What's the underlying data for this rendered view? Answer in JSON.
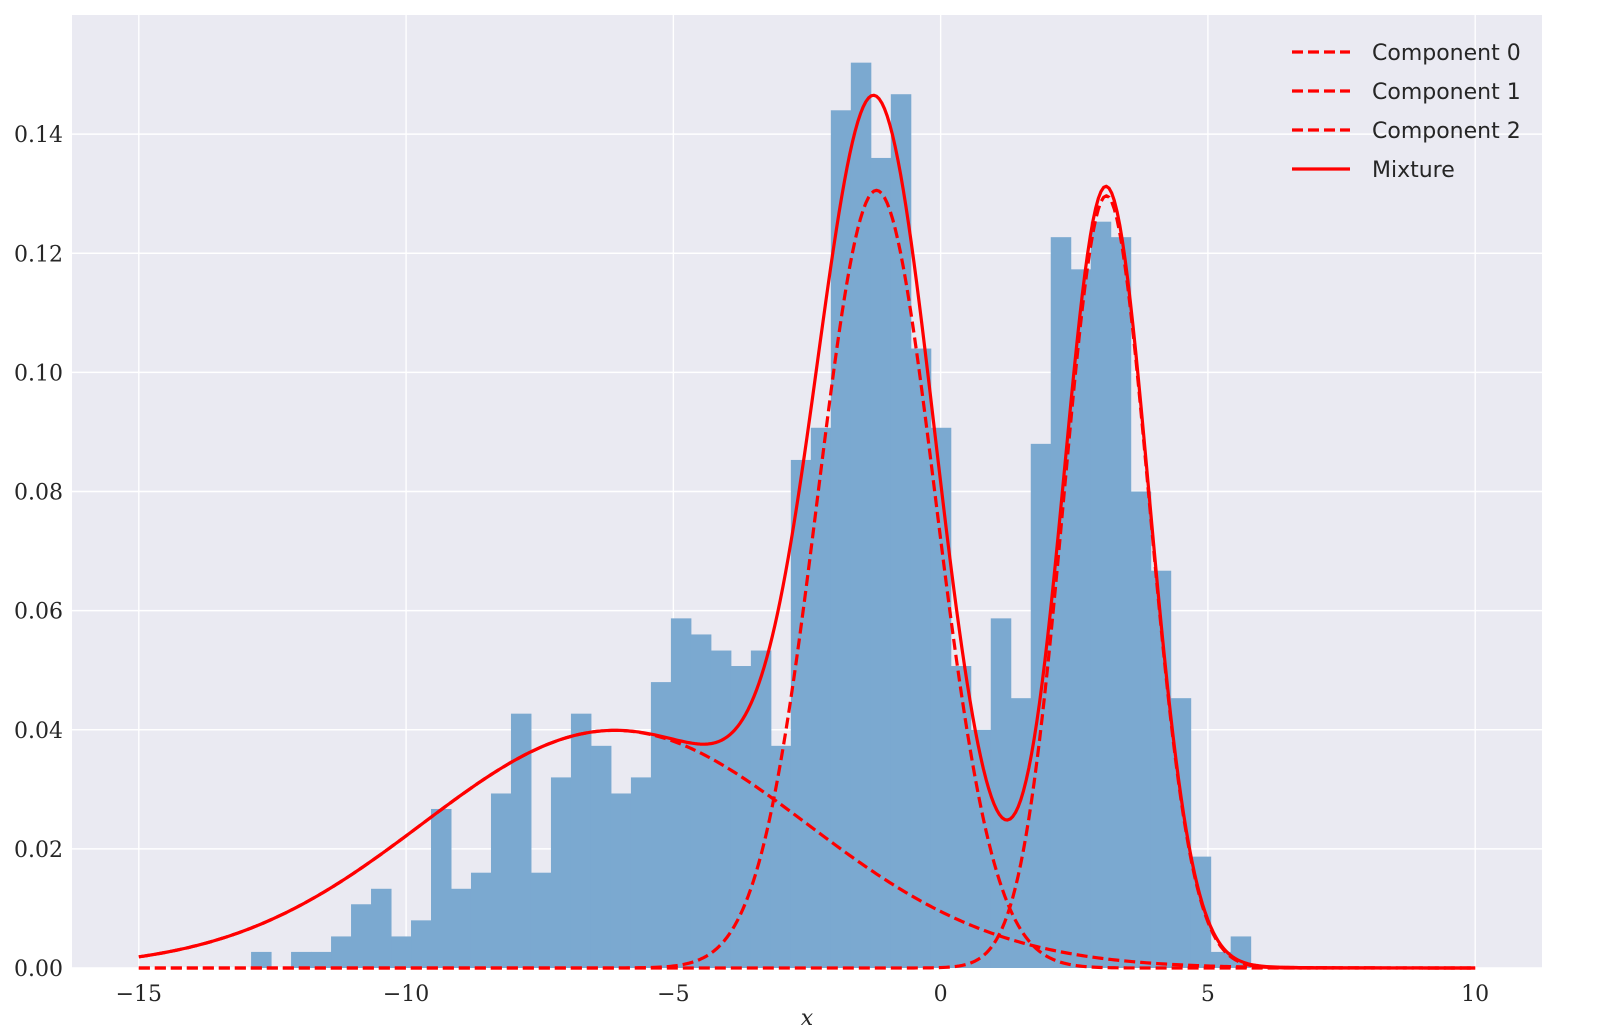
{
  "chart_data": {
    "type": "bar",
    "xlabel": "x",
    "ylabel": "",
    "xlim": [
      -16.25,
      11.25
    ],
    "ylim": [
      0,
      0.16
    ],
    "grid": true,
    "legend_position": "top-right",
    "x_ticks": [
      -15,
      -10,
      -5,
      0,
      5,
      10
    ],
    "x_tick_labels": [
      "−15",
      "−10",
      "−5",
      "0",
      "5",
      "10"
    ],
    "y_ticks": [
      0,
      0.02,
      0.04,
      0.06,
      0.08,
      0.1,
      0.12,
      0.14
    ],
    "y_tick_labels": [
      "0.00",
      "0.02",
      "0.04",
      "0.06",
      "0.08",
      "0.10",
      "0.12",
      "0.14"
    ],
    "histogram": {
      "color": "#7ba9d0",
      "bin_left": -12.9,
      "bin_width": 0.374,
      "values": [
        0.0027,
        0,
        0.0027,
        0.0027,
        0.0053,
        0.0107,
        0.0133,
        0.0053,
        0.008,
        0.0267,
        0.0133,
        0.016,
        0.0293,
        0.0427,
        0.016,
        0.032,
        0.0427,
        0.0373,
        0.0293,
        0.032,
        0.048,
        0.0587,
        0.056,
        0.0533,
        0.0507,
        0.0533,
        0.0373,
        0.0853,
        0.0907,
        0.144,
        0.152,
        0.136,
        0.1467,
        0.104,
        0.0907,
        0.0507,
        0.04,
        0.0587,
        0.0453,
        0.088,
        0.1227,
        0.1173,
        0.1253,
        0.1227,
        0.08,
        0.0667,
        0.0453,
        0.0187,
        0.0027,
        0.0053
      ]
    },
    "series": [
      {
        "name": "Component 0",
        "style": "dashed",
        "color": "#ff0000",
        "weight": 0.36,
        "mean": -1.2,
        "sd": 1.1
      },
      {
        "name": "Component 1",
        "style": "dashed",
        "color": "#ff0000",
        "weight": 0.26,
        "mean": 3.1,
        "sd": 0.8
      },
      {
        "name": "Component 2",
        "style": "dashed",
        "color": "#ff0000",
        "weight": 0.36,
        "mean": -6.1,
        "sd": 3.6
      },
      {
        "name": "Mixture",
        "style": "solid",
        "color": "#ff0000",
        "sum_of": [
          "Component 0",
          "Component 1",
          "Component 2"
        ]
      }
    ],
    "curve_range": [
      -15,
      10
    ]
  }
}
